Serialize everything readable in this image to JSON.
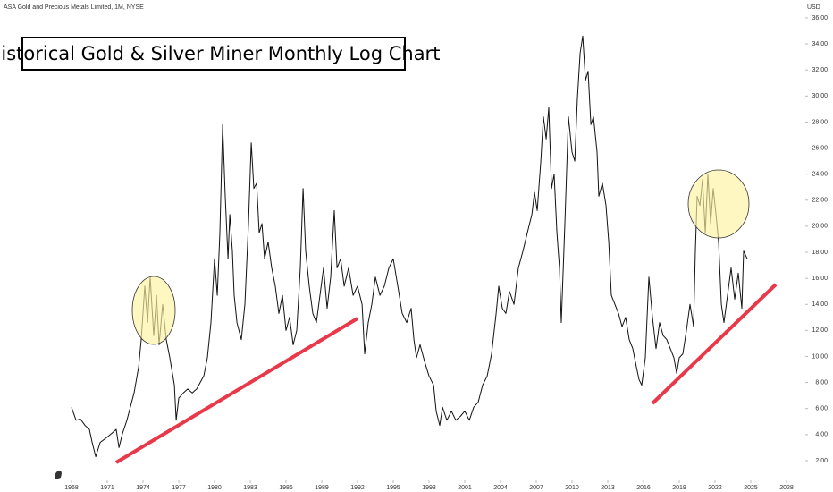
{
  "chart_data": {
    "type": "line",
    "header": "ASA Gold and Precious Metals Limited, 1M, NYSE",
    "title": "Historical Gold & Silver Miner Monthly Log Chart",
    "y_unit": "USD",
    "color": "#111111",
    "x": [
      1968.0,
      1968.38,
      1968.75,
      1969.13,
      1969.5,
      1969.73,
      1970.03,
      1970.4,
      1970.85,
      1971.38,
      1971.75,
      1971.98,
      1972.28,
      1972.65,
      1973.25,
      1973.63,
      1973.85,
      1974.15,
      1974.38,
      1974.6,
      1974.9,
      1975.13,
      1975.35,
      1975.65,
      1975.95,
      1976.25,
      1976.63,
      1976.78,
      1977,
      1977.38,
      1977.75,
      1978.13,
      1978.5,
      1979.1,
      1979.4,
      1979.7,
      1980,
      1980.23,
      1980.45,
      1980.68,
      1980.9,
      1981.13,
      1981.28,
      1981.5,
      1981.65,
      1981.88,
      1982.25,
      1982.55,
      1982.85,
      1983.08,
      1983.3,
      1983.53,
      1983.75,
      1983.98,
      1984.2,
      1984.5,
      1984.8,
      1985.1,
      1985.4,
      1985.7,
      1986,
      1986.3,
      1986.6,
      1986.9,
      1987.2,
      1987.43,
      1987.65,
      1987.95,
      1988.25,
      1988.55,
      1988.85,
      1989.15,
      1989.45,
      1989.75,
      1990.05,
      1990.28,
      1990.58,
      1990.88,
      1991.25,
      1991.63,
      1992,
      1992.38,
      1992.6,
      1992.9,
      1993.2,
      1993.5,
      1993.88,
      1994.25,
      1994.63,
      1995,
      1995.38,
      1995.75,
      1996.13,
      1996.5,
      1996.73,
      1996.95,
      1997.25,
      1997.63,
      1998,
      1998.38,
      1998.6,
      1998.9,
      1999.13,
      1999.5,
      1999.88,
      2000.25,
      2000.63,
      2001,
      2001.38,
      2001.75,
      2002.13,
      2002.5,
      2002.88,
      2003.25,
      2003.63,
      2003.85,
      2004.15,
      2004.45,
      2004.75,
      2005.13,
      2005.5,
      2005.88,
      2006.25,
      2006.63,
      2006.85,
      2007.08,
      2007.38,
      2007.6,
      2007.83,
      2008.05,
      2008.28,
      2008.5,
      2008.73,
      2008.95,
      2009.1,
      2009.4,
      2009.7,
      2010,
      2010.23,
      2010.45,
      2010.68,
      2010.9,
      2011.13,
      2011.35,
      2011.58,
      2011.8,
      2012.1,
      2012.25,
      2012.55,
      2012.85,
      2013.08,
      2013.3,
      2013.6,
      2013.9,
      2014.2,
      2014.5,
      2014.8,
      2015.1,
      2015.4,
      2015.63,
      2015.85,
      2016.15,
      2016.45,
      2016.75,
      2017.05,
      2017.35,
      2017.65,
      2017.95,
      2018.25,
      2018.55,
      2018.78,
      2019,
      2019.3,
      2019.6,
      2019.9,
      2020.2,
      2020.35,
      2020.5,
      2020.73,
      2020.95,
      2021.18,
      2021.4,
      2021.63,
      2021.85,
      2022.08,
      2022.3,
      2022.53,
      2022.75,
      2023.05,
      2023.35,
      2023.65,
      2023.95,
      2024.25,
      2024.4,
      2024.7
    ],
    "values": [
      6.1,
      5.1,
      5.2,
      4.7,
      4.4,
      3.4,
      2.3,
      3.4,
      3.7,
      4.1,
      4.4,
      3.0,
      4.1,
      5.1,
      7.2,
      9.2,
      11.3,
      15.4,
      12.6,
      16.1,
      11.6,
      14.7,
      10.9,
      14.0,
      11.3,
      9.9,
      7.8,
      5.1,
      6.8,
      7.2,
      7.5,
      7.2,
      7.5,
      8.5,
      9.9,
      12.6,
      17.5,
      14.7,
      19.5,
      27.8,
      22.3,
      17.5,
      20.9,
      18.1,
      14.7,
      12.6,
      11.3,
      14.0,
      20.2,
      26.4,
      22.9,
      23.3,
      19.5,
      20.2,
      17.5,
      18.8,
      16.8,
      15.4,
      13.3,
      14.7,
      12.0,
      13.0,
      10.9,
      12.0,
      16.8,
      22.9,
      18.1,
      15.4,
      13.3,
      12.6,
      14.7,
      16.8,
      13.7,
      16.1,
      21.2,
      16.8,
      17.5,
      15.4,
      16.8,
      14.7,
      15.4,
      14.0,
      10.2,
      12.6,
      14.0,
      16.1,
      14.7,
      15.4,
      16.8,
      17.5,
      15.4,
      13.3,
      12.6,
      13.7,
      11.3,
      9.9,
      10.9,
      9.6,
      8.5,
      7.8,
      5.8,
      4.7,
      6.1,
      5.1,
      5.8,
      5.1,
      5.4,
      5.8,
      5.1,
      6.1,
      6.5,
      7.8,
      8.5,
      10.2,
      13.3,
      15.4,
      13.7,
      13.3,
      15.0,
      14.0,
      16.8,
      18.1,
      19.5,
      20.9,
      22.6,
      21.2,
      25.0,
      28.4,
      26.7,
      29.1,
      22.9,
      24.0,
      19.5,
      16.8,
      12.6,
      20.2,
      28.4,
      25.7,
      25.0,
      29.8,
      33.3,
      34.6,
      31.2,
      31.9,
      27.8,
      28.4,
      25.7,
      22.3,
      23.3,
      21.6,
      18.8,
      14.7,
      14.0,
      13.3,
      12.3,
      13.0,
      11.3,
      10.6,
      9.2,
      8.2,
      7.8,
      9.9,
      16.1,
      13.0,
      10.6,
      12.6,
      11.6,
      11.3,
      10.6,
      9.9,
      8.7,
      9.9,
      10.2,
      12.0,
      14.0,
      12.3,
      18.1,
      22.3,
      21.6,
      23.6,
      19.5,
      24.0,
      20.2,
      22.9,
      20.9,
      18.8,
      14.0,
      12.6,
      14.7,
      16.8,
      14.4,
      16.4,
      13.7,
      18.1,
      17.5
    ],
    "xlim": [
      1962,
      2029.5
    ],
    "xticks": [
      1968,
      1971,
      1974,
      1977,
      1980,
      1983,
      1986,
      1989,
      1992,
      1995,
      1998,
      2001,
      2004,
      2007,
      2010,
      2013,
      2016,
      2019,
      2022,
      2025,
      2028
    ],
    "ylim": [
      0.28,
      37.37
    ],
    "yticks": [
      {
        "value": 2,
        "label": "2.00"
      },
      {
        "value": 4,
        "label": "4.00"
      },
      {
        "value": 6,
        "label": "6.00"
      },
      {
        "value": 8,
        "label": "8.00"
      },
      {
        "value": 10,
        "label": "10.00"
      },
      {
        "value": 12,
        "label": "12.00"
      },
      {
        "value": 14,
        "label": "14.00"
      },
      {
        "value": 16,
        "label": "16.00"
      },
      {
        "value": 18,
        "label": "18.00"
      },
      {
        "value": 20,
        "label": "20.00"
      },
      {
        "value": 22,
        "label": "22.00"
      },
      {
        "value": 24,
        "label": "24.00"
      },
      {
        "value": 26,
        "label": "26.00"
      },
      {
        "value": 28,
        "label": "28.00"
      },
      {
        "value": 30,
        "label": "30.00"
      },
      {
        "value": 32,
        "label": "32.00"
      },
      {
        "value": 34,
        "label": "34.00"
      },
      {
        "value": 36,
        "label": "36.00"
      }
    ],
    "grid": false
  }
}
